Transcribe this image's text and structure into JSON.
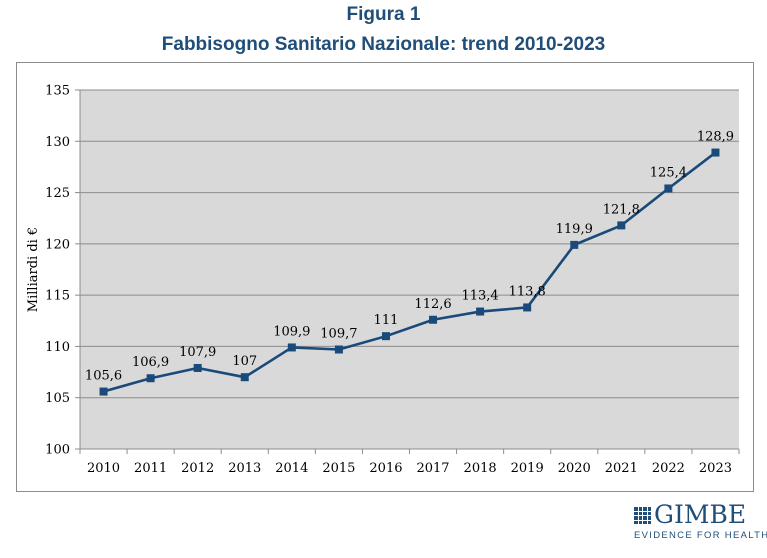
{
  "figure": {
    "label": "Figura 1",
    "subtitle": "Fabbisogno Sanitario Nazionale: trend 2010-2023"
  },
  "chart_data": {
    "type": "line",
    "title": "",
    "xlabel": "",
    "ylabel": "Milliardi di €",
    "ylim": [
      100,
      135
    ],
    "yticks": [
      100,
      105,
      110,
      115,
      120,
      125,
      130,
      135
    ],
    "grid": true,
    "legend": "none",
    "colors": {
      "line": "#1a4a7a",
      "plot_bg": "#d9d9d9",
      "grid": "#8c8c8c"
    },
    "categories": [
      "2010",
      "2011",
      "2012",
      "2013",
      "2014",
      "2015",
      "2016",
      "2017",
      "2018",
      "2019",
      "2020",
      "2021",
      "2022",
      "2023"
    ],
    "values": [
      105.6,
      106.9,
      107.9,
      107,
      109.9,
      109.7,
      111,
      112.6,
      113.4,
      113.8,
      119.9,
      121.8,
      125.4,
      128.9
    ],
    "data_labels": [
      "105,6",
      "106,9",
      "107,9",
      "107",
      "109,9",
      "109,7",
      "111",
      "112,6",
      "113,4",
      "113,8",
      "119,9",
      "121,8",
      "125,4",
      "128,9"
    ]
  },
  "logo": {
    "name": "GIMBE",
    "tagline": "EVIDENCE FOR HEALTH",
    "icon": "gimbe-logo-icon"
  }
}
